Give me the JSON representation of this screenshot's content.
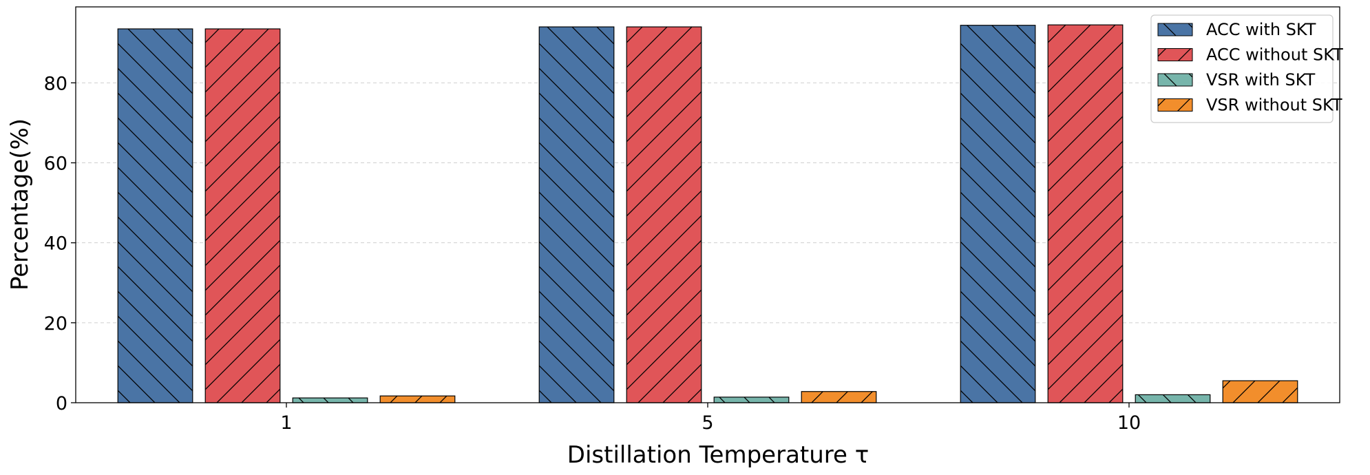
{
  "chart_data": {
    "type": "bar",
    "title": "",
    "xlabel": "Distillation Temperature τ",
    "ylabel": "Percentage(%)",
    "categories": [
      "1",
      "5",
      "10"
    ],
    "yticks": [
      "0",
      "20",
      "40",
      "60",
      "80"
    ],
    "ylim": [
      0,
      99
    ],
    "grid": "horizontal dashed",
    "legend_position": "top-right",
    "series": [
      {
        "name": "ACC with SKT",
        "values": [
          93.5,
          94.0,
          94.4
        ],
        "color": "#4a74a5",
        "hatch": "backslash"
      },
      {
        "name": "ACC without SKT",
        "values": [
          93.5,
          94.0,
          94.5
        ],
        "color": "#e05558",
        "hatch": "slash"
      },
      {
        "name": "VSR with SKT",
        "values": [
          1.2,
          1.4,
          2.0
        ],
        "color": "#77b5ab",
        "hatch": "backslash"
      },
      {
        "name": "VSR without SKT",
        "values": [
          1.7,
          2.8,
          5.5
        ],
        "color": "#f28e2c",
        "hatch": "slash"
      }
    ]
  }
}
